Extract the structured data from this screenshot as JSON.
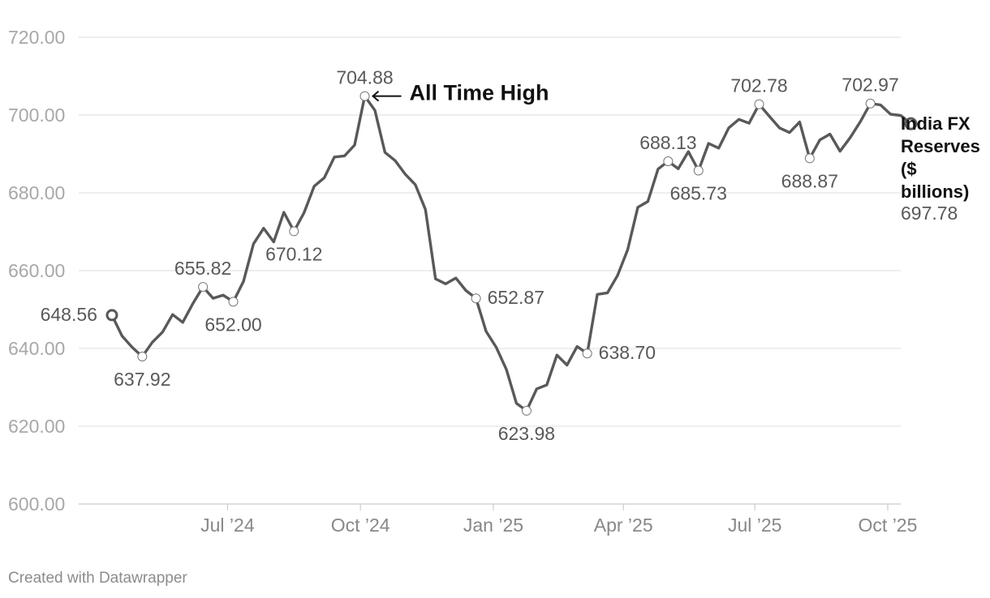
{
  "chart_data": {
    "type": "line",
    "y_ticks": [
      "600.00",
      "620.00",
      "640.00",
      "660.00",
      "680.00",
      "700.00",
      "720.00"
    ],
    "ylim": [
      600,
      720
    ],
    "x_ticks": [
      {
        "label": "Jul ’24",
        "date": "2024-07-01"
      },
      {
        "label": "Oct ’24",
        "date": "2024-10-01"
      },
      {
        "label": "Jan ’25",
        "date": "2025-01-01"
      },
      {
        "label": "Apr ’25",
        "date": "2025-04-01"
      },
      {
        "label": "Jul ’25",
        "date": "2025-07-01"
      },
      {
        "label": "Oct ’25",
        "date": "2025-10-01"
      }
    ],
    "xlim": [
      "2024-03-20",
      "2025-10-10"
    ],
    "grid": true,
    "line_color": "#595959",
    "series": [
      {
        "name": "India FX Reserves ($ billions)",
        "points": [
          [
            "2024-04-12",
            648.56
          ],
          [
            "2024-04-19",
            643.2
          ],
          [
            "2024-04-26",
            640.3
          ],
          [
            "2024-05-03",
            637.92
          ],
          [
            "2024-05-10",
            641.6
          ],
          [
            "2024-05-17",
            644.2
          ],
          [
            "2024-05-24",
            648.7
          ],
          [
            "2024-05-31",
            646.7
          ],
          [
            "2024-06-07",
            651.5
          ],
          [
            "2024-06-14",
            655.82
          ],
          [
            "2024-06-21",
            652.9
          ],
          [
            "2024-06-28",
            653.7
          ],
          [
            "2024-07-05",
            652.0
          ],
          [
            "2024-07-12",
            657.2
          ],
          [
            "2024-07-19",
            666.9
          ],
          [
            "2024-07-26",
            670.9
          ],
          [
            "2024-08-02",
            667.4
          ],
          [
            "2024-08-09",
            675.0
          ],
          [
            "2024-08-16",
            670.12
          ],
          [
            "2024-08-23",
            674.9
          ],
          [
            "2024-08-30",
            681.7
          ],
          [
            "2024-09-06",
            683.9
          ],
          [
            "2024-09-13",
            689.2
          ],
          [
            "2024-09-20",
            689.5
          ],
          [
            "2024-09-27",
            692.3
          ],
          [
            "2024-10-04",
            704.88
          ],
          [
            "2024-10-11",
            701.2
          ],
          [
            "2024-10-18",
            690.4
          ],
          [
            "2024-10-25",
            688.3
          ],
          [
            "2024-11-01",
            684.8
          ],
          [
            "2024-11-08",
            682.1
          ],
          [
            "2024-11-15",
            675.7
          ],
          [
            "2024-11-22",
            657.9
          ],
          [
            "2024-11-29",
            656.6
          ],
          [
            "2024-12-06",
            658.1
          ],
          [
            "2024-12-13",
            654.9
          ],
          [
            "2024-12-20",
            652.87
          ],
          [
            "2024-12-27",
            644.4
          ],
          [
            "2025-01-03",
            640.3
          ],
          [
            "2025-01-10",
            634.6
          ],
          [
            "2025-01-17",
            625.9
          ],
          [
            "2025-01-24",
            623.98
          ],
          [
            "2025-01-31",
            629.6
          ],
          [
            "2025-02-07",
            630.6
          ],
          [
            "2025-02-14",
            638.3
          ],
          [
            "2025-02-21",
            635.7
          ],
          [
            "2025-02-28",
            640.5
          ],
          [
            "2025-03-07",
            638.7
          ],
          [
            "2025-03-14",
            653.9
          ],
          [
            "2025-03-21",
            654.3
          ],
          [
            "2025-03-28",
            658.8
          ],
          [
            "2025-04-04",
            665.4
          ],
          [
            "2025-04-11",
            676.3
          ],
          [
            "2025-04-18",
            677.8
          ],
          [
            "2025-04-25",
            686.1
          ],
          [
            "2025-05-02",
            688.13
          ],
          [
            "2025-05-09",
            686.2
          ],
          [
            "2025-05-16",
            690.6
          ],
          [
            "2025-05-23",
            685.73
          ],
          [
            "2025-05-30",
            692.7
          ],
          [
            "2025-06-06",
            691.5
          ],
          [
            "2025-06-13",
            696.7
          ],
          [
            "2025-06-20",
            698.9
          ],
          [
            "2025-06-27",
            697.9
          ],
          [
            "2025-07-04",
            702.78
          ],
          [
            "2025-07-11",
            699.7
          ],
          [
            "2025-07-18",
            696.7
          ],
          [
            "2025-07-25",
            695.5
          ],
          [
            "2025-08-01",
            698.2
          ],
          [
            "2025-08-08",
            688.87
          ],
          [
            "2025-08-15",
            693.6
          ],
          [
            "2025-08-22",
            695.1
          ],
          [
            "2025-08-29",
            690.7
          ],
          [
            "2025-09-05",
            694.2
          ],
          [
            "2025-09-12",
            698.3
          ],
          [
            "2025-09-19",
            702.97
          ],
          [
            "2025-09-26",
            702.6
          ],
          [
            "2025-10-03",
            700.2
          ],
          [
            "2025-10-10",
            699.9
          ],
          [
            "2025-10-17",
            697.78
          ]
        ]
      }
    ],
    "data_labels": [
      {
        "date": "2024-04-12",
        "value": "648.56",
        "pos": "left"
      },
      {
        "date": "2024-05-03",
        "value": "637.92",
        "pos": "below"
      },
      {
        "date": "2024-06-14",
        "value": "655.82",
        "pos": "above"
      },
      {
        "date": "2024-07-05",
        "value": "652.00",
        "pos": "below"
      },
      {
        "date": "2024-08-16",
        "value": "670.12",
        "pos": "below"
      },
      {
        "date": "2024-10-04",
        "value": "704.88",
        "pos": "above"
      },
      {
        "date": "2024-12-20",
        "value": "652.87",
        "pos": "right"
      },
      {
        "date": "2025-01-24",
        "value": "623.98",
        "pos": "below"
      },
      {
        "date": "2025-03-07",
        "value": "638.70",
        "pos": "right"
      },
      {
        "date": "2025-05-02",
        "value": "688.13",
        "pos": "above"
      },
      {
        "date": "2025-05-23",
        "value": "685.73",
        "pos": "below"
      },
      {
        "date": "2025-07-04",
        "value": "702.78",
        "pos": "above"
      },
      {
        "date": "2025-08-08",
        "value": "688.87",
        "pos": "below"
      },
      {
        "date": "2025-09-19",
        "value": "702.97",
        "pos": "above"
      }
    ],
    "annotation": {
      "text": "All Time High",
      "target_date": "2024-10-04",
      "target_value": 704.88
    },
    "end_label": {
      "name_lines": [
        "India FX",
        "Reserves",
        "($",
        "billions)"
      ],
      "value": "697.78"
    }
  },
  "footer": {
    "text": "Created with Datawrapper"
  }
}
